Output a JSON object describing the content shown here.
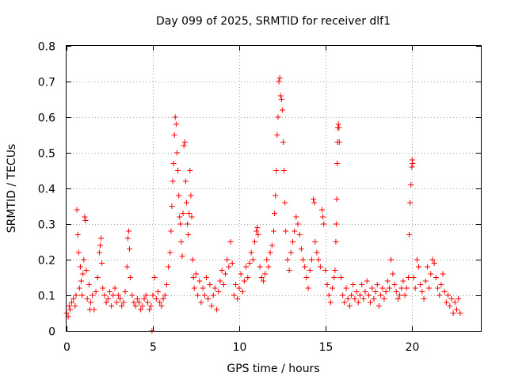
{
  "chart_data": {
    "type": "scatter",
    "title": "Day 099 of 2025, SRMTID for receiver dlf1",
    "xlabel": "GPS time / hours",
    "ylabel": "SRMTID / TECUs",
    "xlim": [
      0,
      24
    ],
    "ylim": [
      0,
      0.8
    ],
    "xticks": [
      0,
      5,
      10,
      15,
      20
    ],
    "xtick_labels": [
      "0",
      "5",
      "10",
      "15",
      "20"
    ],
    "yticks": [
      0,
      0.1,
      0.2,
      0.3,
      0.4,
      0.5,
      0.6,
      0.7,
      0.8
    ],
    "ytick_labels": [
      "0",
      "0.1",
      "0.2",
      "0.3",
      "0.4",
      "0.5",
      "0.6",
      "0.7",
      "0.8"
    ],
    "grid": true,
    "marker": "+",
    "color": "#ff0000",
    "series": [
      {
        "name": "SRMTID",
        "points": [
          [
            0.0,
            0.05
          ],
          [
            0.1,
            0.04
          ],
          [
            0.15,
            0.07
          ],
          [
            0.2,
            0.06
          ],
          [
            0.3,
            0.08
          ],
          [
            0.4,
            0.09
          ],
          [
            0.5,
            0.07
          ],
          [
            0.55,
            0.1
          ],
          [
            0.6,
            0.34
          ],
          [
            0.65,
            0.27
          ],
          [
            0.7,
            0.22
          ],
          [
            0.75,
            0.12
          ],
          [
            0.8,
            0.18
          ],
          [
            0.85,
            0.14
          ],
          [
            0.9,
            0.1
          ],
          [
            0.95,
            0.16
          ],
          [
            1.0,
            0.2
          ],
          [
            1.05,
            0.32
          ],
          [
            1.1,
            0.31
          ],
          [
            1.15,
            0.17
          ],
          [
            1.2,
            0.09
          ],
          [
            1.3,
            0.13
          ],
          [
            1.35,
            0.06
          ],
          [
            1.4,
            0.08
          ],
          [
            1.5,
            0.1
          ],
          [
            1.6,
            0.06
          ],
          [
            1.7,
            0.11
          ],
          [
            1.8,
            0.15
          ],
          [
            1.9,
            0.22
          ],
          [
            1.95,
            0.24
          ],
          [
            2.0,
            0.26
          ],
          [
            2.05,
            0.19
          ],
          [
            2.1,
            0.12
          ],
          [
            2.2,
            0.1
          ],
          [
            2.3,
            0.08
          ],
          [
            2.4,
            0.09
          ],
          [
            2.5,
            0.11
          ],
          [
            2.6,
            0.07
          ],
          [
            2.7,
            0.1
          ],
          [
            2.8,
            0.12
          ],
          [
            2.9,
            0.08
          ],
          [
            3.0,
            0.1
          ],
          [
            3.1,
            0.09
          ],
          [
            3.2,
            0.07
          ],
          [
            3.3,
            0.08
          ],
          [
            3.4,
            0.11
          ],
          [
            3.5,
            0.18
          ],
          [
            3.55,
            0.26
          ],
          [
            3.6,
            0.28
          ],
          [
            3.65,
            0.23
          ],
          [
            3.7,
            0.15
          ],
          [
            3.8,
            0.1
          ],
          [
            3.9,
            0.08
          ],
          [
            4.0,
            0.07
          ],
          [
            4.1,
            0.09
          ],
          [
            4.2,
            0.08
          ],
          [
            4.3,
            0.06
          ],
          [
            4.4,
            0.07
          ],
          [
            4.5,
            0.09
          ],
          [
            4.6,
            0.1
          ],
          [
            4.7,
            0.08
          ],
          [
            4.8,
            0.06
          ],
          [
            4.9,
            0.07
          ],
          [
            4.95,
            0.0
          ],
          [
            5.0,
            0.1
          ],
          [
            5.1,
            0.15
          ],
          [
            5.2,
            0.09
          ],
          [
            5.3,
            0.11
          ],
          [
            5.4,
            0.08
          ],
          [
            5.5,
            0.07
          ],
          [
            5.6,
            0.09
          ],
          [
            5.7,
            0.1
          ],
          [
            5.8,
            0.13
          ],
          [
            5.9,
            0.18
          ],
          [
            6.0,
            0.22
          ],
          [
            6.05,
            0.28
          ],
          [
            6.1,
            0.35
          ],
          [
            6.15,
            0.42
          ],
          [
            6.2,
            0.47
          ],
          [
            6.25,
            0.55
          ],
          [
            6.3,
            0.6
          ],
          [
            6.35,
            0.58
          ],
          [
            6.4,
            0.5
          ],
          [
            6.45,
            0.45
          ],
          [
            6.5,
            0.38
          ],
          [
            6.55,
            0.32
          ],
          [
            6.6,
            0.3
          ],
          [
            6.65,
            0.25
          ],
          [
            6.7,
            0.21
          ],
          [
            6.75,
            0.33
          ],
          [
            6.8,
            0.52
          ],
          [
            6.85,
            0.53
          ],
          [
            6.9,
            0.42
          ],
          [
            6.95,
            0.36
          ],
          [
            7.0,
            0.3
          ],
          [
            7.05,
            0.27
          ],
          [
            7.1,
            0.33
          ],
          [
            7.15,
            0.45
          ],
          [
            7.2,
            0.38
          ],
          [
            7.25,
            0.32
          ],
          [
            7.3,
            0.2
          ],
          [
            7.35,
            0.15
          ],
          [
            7.4,
            0.12
          ],
          [
            7.5,
            0.16
          ],
          [
            7.6,
            0.1
          ],
          [
            7.7,
            0.14
          ],
          [
            7.8,
            0.08
          ],
          [
            7.9,
            0.12
          ],
          [
            8.0,
            0.1
          ],
          [
            8.1,
            0.15
          ],
          [
            8.2,
            0.09
          ],
          [
            8.3,
            0.13
          ],
          [
            8.4,
            0.07
          ],
          [
            8.5,
            0.1
          ],
          [
            8.6,
            0.12
          ],
          [
            8.7,
            0.06
          ],
          [
            8.8,
            0.11
          ],
          [
            8.9,
            0.14
          ],
          [
            9.0,
            0.17
          ],
          [
            9.1,
            0.13
          ],
          [
            9.2,
            0.16
          ],
          [
            9.3,
            0.2
          ],
          [
            9.4,
            0.18
          ],
          [
            9.5,
            0.25
          ],
          [
            9.6,
            0.19
          ],
          [
            9.7,
            0.1
          ],
          [
            9.8,
            0.13
          ],
          [
            9.9,
            0.09
          ],
          [
            10.0,
            0.12
          ],
          [
            10.1,
            0.16
          ],
          [
            10.2,
            0.11
          ],
          [
            10.3,
            0.14
          ],
          [
            10.4,
            0.18
          ],
          [
            10.5,
            0.15
          ],
          [
            10.6,
            0.19
          ],
          [
            10.7,
            0.22
          ],
          [
            10.8,
            0.2
          ],
          [
            10.9,
            0.25
          ],
          [
            11.0,
            0.28
          ],
          [
            11.05,
            0.29
          ],
          [
            11.1,
            0.27
          ],
          [
            11.2,
            0.18
          ],
          [
            11.3,
            0.15
          ],
          [
            11.4,
            0.14
          ],
          [
            11.5,
            0.16
          ],
          [
            11.6,
            0.2
          ],
          [
            11.7,
            0.18
          ],
          [
            11.8,
            0.22
          ],
          [
            11.9,
            0.24
          ],
          [
            12.0,
            0.28
          ],
          [
            12.05,
            0.33
          ],
          [
            12.1,
            0.38
          ],
          [
            12.15,
            0.45
          ],
          [
            12.2,
            0.55
          ],
          [
            12.25,
            0.6
          ],
          [
            12.3,
            0.7
          ],
          [
            12.35,
            0.71
          ],
          [
            12.4,
            0.66
          ],
          [
            12.45,
            0.65
          ],
          [
            12.5,
            0.62
          ],
          [
            12.55,
            0.53
          ],
          [
            12.6,
            0.45
          ],
          [
            12.65,
            0.36
          ],
          [
            12.7,
            0.28
          ],
          [
            12.8,
            0.2
          ],
          [
            12.9,
            0.17
          ],
          [
            13.0,
            0.22
          ],
          [
            13.1,
            0.25
          ],
          [
            13.2,
            0.28
          ],
          [
            13.3,
            0.32
          ],
          [
            13.4,
            0.3
          ],
          [
            13.5,
            0.27
          ],
          [
            13.6,
            0.23
          ],
          [
            13.7,
            0.2
          ],
          [
            13.8,
            0.18
          ],
          [
            13.9,
            0.15
          ],
          [
            14.0,
            0.12
          ],
          [
            14.1,
            0.17
          ],
          [
            14.2,
            0.2
          ],
          [
            14.3,
            0.37
          ],
          [
            14.35,
            0.36
          ],
          [
            14.4,
            0.25
          ],
          [
            14.5,
            0.22
          ],
          [
            14.6,
            0.2
          ],
          [
            14.7,
            0.18
          ],
          [
            14.8,
            0.34
          ],
          [
            14.85,
            0.32
          ],
          [
            14.9,
            0.3
          ],
          [
            15.0,
            0.17
          ],
          [
            15.1,
            0.13
          ],
          [
            15.2,
            0.1
          ],
          [
            15.3,
            0.08
          ],
          [
            15.4,
            0.12
          ],
          [
            15.5,
            0.15
          ],
          [
            15.55,
            0.17
          ],
          [
            15.6,
            0.25
          ],
          [
            15.62,
            0.3
          ],
          [
            15.65,
            0.37
          ],
          [
            15.68,
            0.47
          ],
          [
            15.7,
            0.53
          ],
          [
            15.72,
            0.57
          ],
          [
            15.75,
            0.58
          ],
          [
            15.78,
            0.57
          ],
          [
            15.8,
            0.53
          ],
          [
            15.9,
            0.15
          ],
          [
            16.0,
            0.1
          ],
          [
            16.1,
            0.08
          ],
          [
            16.2,
            0.12
          ],
          [
            16.3,
            0.09
          ],
          [
            16.4,
            0.07
          ],
          [
            16.5,
            0.1
          ],
          [
            16.6,
            0.13
          ],
          [
            16.7,
            0.09
          ],
          [
            16.8,
            0.11
          ],
          [
            16.9,
            0.08
          ],
          [
            17.0,
            0.1
          ],
          [
            17.1,
            0.13
          ],
          [
            17.2,
            0.09
          ],
          [
            17.3,
            0.11
          ],
          [
            17.4,
            0.14
          ],
          [
            17.5,
            0.1
          ],
          [
            17.6,
            0.08
          ],
          [
            17.7,
            0.12
          ],
          [
            17.8,
            0.09
          ],
          [
            17.9,
            0.11
          ],
          [
            18.0,
            0.13
          ],
          [
            18.1,
            0.07
          ],
          [
            18.2,
            0.1
          ],
          [
            18.3,
            0.12
          ],
          [
            18.4,
            0.09
          ],
          [
            18.5,
            0.11
          ],
          [
            18.6,
            0.14
          ],
          [
            18.7,
            0.12
          ],
          [
            18.8,
            0.2
          ],
          [
            18.9,
            0.16
          ],
          [
            19.0,
            0.13
          ],
          [
            19.1,
            0.11
          ],
          [
            19.2,
            0.09
          ],
          [
            19.3,
            0.1
          ],
          [
            19.4,
            0.12
          ],
          [
            19.5,
            0.14
          ],
          [
            19.6,
            0.1
          ],
          [
            19.7,
            0.12
          ],
          [
            19.8,
            0.15
          ],
          [
            19.85,
            0.27
          ],
          [
            19.9,
            0.36
          ],
          [
            19.95,
            0.41
          ],
          [
            20.0,
            0.46
          ],
          [
            20.02,
            0.48
          ],
          [
            20.05,
            0.47
          ],
          [
            20.1,
            0.15
          ],
          [
            20.2,
            0.12
          ],
          [
            20.3,
            0.2
          ],
          [
            20.4,
            0.18
          ],
          [
            20.5,
            0.13
          ],
          [
            20.6,
            0.11
          ],
          [
            20.7,
            0.09
          ],
          [
            20.8,
            0.14
          ],
          [
            20.9,
            0.18
          ],
          [
            21.0,
            0.12
          ],
          [
            21.1,
            0.16
          ],
          [
            21.2,
            0.2
          ],
          [
            21.3,
            0.19
          ],
          [
            21.4,
            0.15
          ],
          [
            21.5,
            0.12
          ],
          [
            21.6,
            0.1
          ],
          [
            21.7,
            0.13
          ],
          [
            21.8,
            0.16
          ],
          [
            21.9,
            0.11
          ],
          [
            22.0,
            0.08
          ],
          [
            22.1,
            0.1
          ],
          [
            22.2,
            0.07
          ],
          [
            22.3,
            0.09
          ],
          [
            22.4,
            0.05
          ],
          [
            22.5,
            0.08
          ],
          [
            22.6,
            0.06
          ],
          [
            22.7,
            0.09
          ],
          [
            22.8,
            0.05
          ]
        ]
      }
    ]
  }
}
